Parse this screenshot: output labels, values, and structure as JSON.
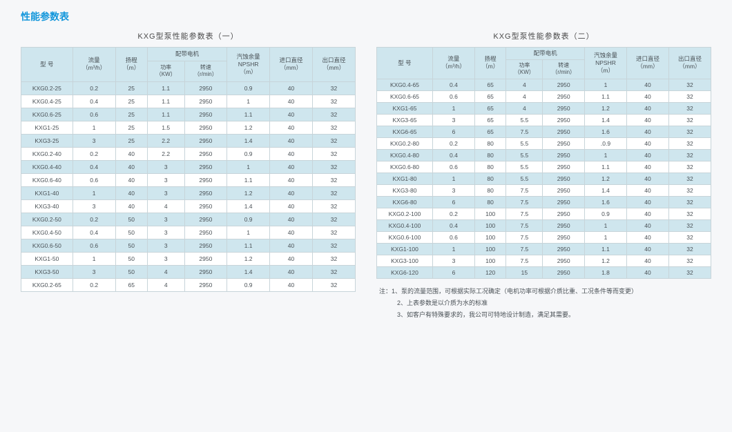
{
  "page_title": "性能参数表",
  "table1": {
    "title": "KXG型泵性能参数表（一）",
    "headers": {
      "model": "型 号",
      "flow": "流量\n（m³/h）",
      "head": "扬程\n（m）",
      "motor": "配带电机",
      "power": "功率\n（KW）",
      "speed": "转速\n（r/min）",
      "npshr": "汽蚀余量\nNPSHR\n（m）",
      "inlet": "进口直径\n（mm）",
      "outlet": "出口直径\n（mm）"
    },
    "rows": [
      [
        "KXG0.2-25",
        "0.2",
        "25",
        "1.1",
        "2950",
        "0.9",
        "40",
        "32"
      ],
      [
        "KXG0.4-25",
        "0.4",
        "25",
        "1.1",
        "2950",
        "1",
        "40",
        "32"
      ],
      [
        "KXG0.6-25",
        "0.6",
        "25",
        "1.1",
        "2950",
        "1.1",
        "40",
        "32"
      ],
      [
        "KXG1-25",
        "1",
        "25",
        "1.5",
        "2950",
        "1.2",
        "40",
        "32"
      ],
      [
        "KXG3-25",
        "3",
        "25",
        "2.2",
        "2950",
        "1.4",
        "40",
        "32"
      ],
      [
        "KXG0.2-40",
        "0.2",
        "40",
        "2.2",
        "2950",
        "0.9",
        "40",
        "32"
      ],
      [
        "KXG0.4-40",
        "0.4",
        "40",
        "3",
        "2950",
        "1",
        "40",
        "32"
      ],
      [
        "KXG0.6-40",
        "0.6",
        "40",
        "3",
        "2950",
        "1.1",
        "40",
        "32"
      ],
      [
        "KXG1-40",
        "1",
        "40",
        "3",
        "2950",
        "1.2",
        "40",
        "32"
      ],
      [
        "KXG3-40",
        "3",
        "40",
        "4",
        "2950",
        "1.4",
        "40",
        "32"
      ],
      [
        "KXG0.2-50",
        "0.2",
        "50",
        "3",
        "2950",
        "0.9",
        "40",
        "32"
      ],
      [
        "KXG0.4-50",
        "0.4",
        "50",
        "3",
        "2950",
        "1",
        "40",
        "32"
      ],
      [
        "KXG0.6-50",
        "0.6",
        "50",
        "3",
        "2950",
        "1.1",
        "40",
        "32"
      ],
      [
        "KXG1-50",
        "1",
        "50",
        "3",
        "2950",
        "1.2",
        "40",
        "32"
      ],
      [
        "KXG3-50",
        "3",
        "50",
        "4",
        "2950",
        "1.4",
        "40",
        "32"
      ],
      [
        "KXG0.2-65",
        "0.2",
        "65",
        "4",
        "2950",
        "0.9",
        "40",
        "32"
      ]
    ]
  },
  "table2": {
    "title": "KXG型泵性能参数表（二）",
    "rows": [
      [
        "KXG0.4-65",
        "0.4",
        "65",
        "4",
        "2950",
        "1",
        "40",
        "32"
      ],
      [
        "KXG0.6-65",
        "0.6",
        "65",
        "4",
        "2950",
        "1.1",
        "40",
        "32"
      ],
      [
        "KXG1-65",
        "1",
        "65",
        "4",
        "2950",
        "1.2",
        "40",
        "32"
      ],
      [
        "KXG3-65",
        "3",
        "65",
        "5.5",
        "2950",
        "1.4",
        "40",
        "32"
      ],
      [
        "KXG6-65",
        "6",
        "65",
        "7.5",
        "2950",
        "1.6",
        "40",
        "32"
      ],
      [
        "KXG0.2-80",
        "0.2",
        "80",
        "5.5",
        "2950",
        ".0.9",
        "40",
        "32"
      ],
      [
        "KXG0.4-80",
        "0.4",
        "80",
        "5.5",
        "2950",
        "1",
        "40",
        "32"
      ],
      [
        "KXG0.6-80",
        "0.6",
        "80",
        "5.5",
        "2950",
        "1.1",
        "40",
        "32"
      ],
      [
        "KXG1-80",
        "1",
        "80",
        "5.5",
        "2950",
        "1.2",
        "40",
        "32"
      ],
      [
        "KXG3-80",
        "3",
        "80",
        "7.5",
        "2950",
        "1.4",
        "40",
        "32"
      ],
      [
        "KXG6-80",
        "6",
        "80",
        "7.5",
        "2950",
        "1.6",
        "40",
        "32"
      ],
      [
        "KXG0.2-100",
        "0.2",
        "100",
        "7.5",
        "2950",
        "0.9",
        "40",
        "32"
      ],
      [
        "KXG0.4-100",
        "0.4",
        "100",
        "7.5",
        "2950",
        "1",
        "40",
        "32"
      ],
      [
        "KXG0.6-100",
        "0.6",
        "100",
        "7.5",
        "2950",
        "1",
        "40",
        "32"
      ],
      [
        "KXG1-100",
        "1",
        "100",
        "7.5",
        "2950",
        "1.1",
        "40",
        "32"
      ],
      [
        "KXG3-100",
        "3",
        "100",
        "7.5",
        "2950",
        "1.2",
        "40",
        "32"
      ],
      [
        "KXG6-120",
        "6",
        "120",
        "15",
        "2950",
        "1.8",
        "40",
        "32"
      ]
    ]
  },
  "notes": {
    "prefix": "注：",
    "line1": "1、泵的流量范围，可根据实际工况确定（电机功率可根据介质比重、工况条件等而变更）",
    "line2": "2、上表参数是以介质为水的标准",
    "line3": "3、如客户有特殊要求的，我公司可特地设计制造，满足其需要。"
  },
  "colors": {
    "header_bg": "#cfe6ee",
    "odd_bg": "#cfe6ee",
    "even_bg": "#ffffff",
    "border": "#c7d4d9",
    "title": "#1296db",
    "page_bg": "#f6f7f9"
  }
}
